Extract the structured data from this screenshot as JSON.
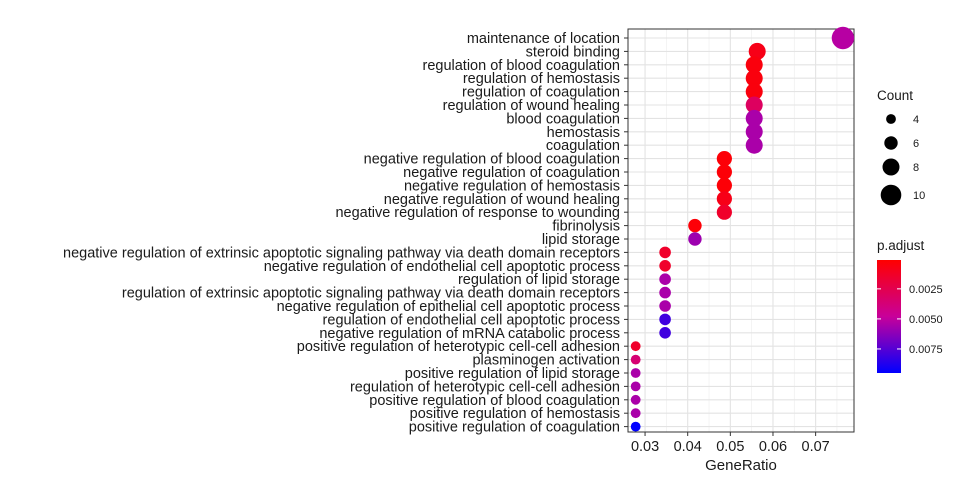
{
  "chart_data": {
    "type": "scatter",
    "xlabel": "GeneRatio",
    "ylabel": "",
    "xlim": [
      0.026,
      0.079
    ],
    "xticks": [
      0.03,
      0.04,
      0.05,
      0.06,
      0.07
    ],
    "xtick_labels": [
      "0.03",
      "0.04",
      "0.05",
      "0.06",
      "0.07"
    ],
    "grid": true,
    "categories": [
      "maintenance of location",
      "steroid binding",
      "regulation of blood coagulation",
      "regulation of hemostasis",
      "regulation of coagulation",
      "regulation of wound healing",
      "blood coagulation",
      "hemostasis",
      "coagulation",
      "negative regulation of blood coagulation",
      "negative regulation of coagulation",
      "negative regulation of hemostasis",
      "negative regulation of wound healing",
      "negative regulation of response to wounding",
      "fibrinolysis",
      "lipid storage",
      "negative regulation of extrinsic apoptotic signaling pathway via death domain receptors",
      "negative regulation of endothelial cell apoptotic process",
      "regulation of lipid storage",
      "regulation of extrinsic apoptotic signaling pathway via death domain receptors",
      "negative regulation of epithelial cell apoptotic process",
      "regulation of endothelial cell apoptotic process",
      "negative regulation of mRNA catabolic process",
      "positive regulation of heterotypic cell-cell adhesion",
      "plasminogen activation",
      "positive regulation of lipid storage",
      "regulation of heterotypic cell-cell adhesion",
      "positive regulation of blood coagulation",
      "positive regulation of hemostasis",
      "positive regulation of coagulation"
    ],
    "points": [
      {
        "x": 0.0764,
        "count": 11,
        "p_adjust": 0.0052
      },
      {
        "x": 0.0563,
        "count": 8,
        "p_adjust": 0.0008
      },
      {
        "x": 0.0556,
        "count": 8,
        "p_adjust": 0.0005
      },
      {
        "x": 0.0556,
        "count": 8,
        "p_adjust": 0.0005
      },
      {
        "x": 0.0556,
        "count": 8,
        "p_adjust": 0.0005
      },
      {
        "x": 0.0556,
        "count": 8,
        "p_adjust": 0.003
      },
      {
        "x": 0.0556,
        "count": 8,
        "p_adjust": 0.0055
      },
      {
        "x": 0.0556,
        "count": 8,
        "p_adjust": 0.0055
      },
      {
        "x": 0.0556,
        "count": 8,
        "p_adjust": 0.0055
      },
      {
        "x": 0.0486,
        "count": 7,
        "p_adjust": 0.0003
      },
      {
        "x": 0.0486,
        "count": 7,
        "p_adjust": 0.0003
      },
      {
        "x": 0.0486,
        "count": 7,
        "p_adjust": 0.0003
      },
      {
        "x": 0.0486,
        "count": 7,
        "p_adjust": 0.0008
      },
      {
        "x": 0.0486,
        "count": 7,
        "p_adjust": 0.0014
      },
      {
        "x": 0.0417,
        "count": 6,
        "p_adjust": 0.0003
      },
      {
        "x": 0.0417,
        "count": 6,
        "p_adjust": 0.0058
      },
      {
        "x": 0.0347,
        "count": 5,
        "p_adjust": 0.0014
      },
      {
        "x": 0.0347,
        "count": 5,
        "p_adjust": 0.0014
      },
      {
        "x": 0.0347,
        "count": 5,
        "p_adjust": 0.0055
      },
      {
        "x": 0.0347,
        "count": 5,
        "p_adjust": 0.0055
      },
      {
        "x": 0.0347,
        "count": 5,
        "p_adjust": 0.0055
      },
      {
        "x": 0.0347,
        "count": 5,
        "p_adjust": 0.008
      },
      {
        "x": 0.0347,
        "count": 5,
        "p_adjust": 0.008
      },
      {
        "x": 0.0278,
        "count": 4,
        "p_adjust": 0.0014
      },
      {
        "x": 0.0278,
        "count": 4,
        "p_adjust": 0.0036
      },
      {
        "x": 0.0278,
        "count": 4,
        "p_adjust": 0.0055
      },
      {
        "x": 0.0278,
        "count": 4,
        "p_adjust": 0.0055
      },
      {
        "x": 0.0278,
        "count": 4,
        "p_adjust": 0.0055
      },
      {
        "x": 0.0278,
        "count": 4,
        "p_adjust": 0.0055
      },
      {
        "x": 0.0278,
        "count": 4,
        "p_adjust": 0.0095
      }
    ],
    "size_legend": {
      "title": "Count",
      "values": [
        4,
        6,
        8,
        10
      ],
      "labels": [
        "4",
        "6",
        "8",
        "10"
      ]
    },
    "color_legend": {
      "title": "p.adjust",
      "range": [
        0.0001,
        0.0095
      ],
      "ticks": [
        0.0025,
        0.005,
        0.0075
      ],
      "tick_labels": [
        "0.0025",
        "0.0050",
        "0.0075"
      ],
      "low_color": "#FF0000",
      "high_color": "#0000FF"
    },
    "legend_placement": "right"
  }
}
